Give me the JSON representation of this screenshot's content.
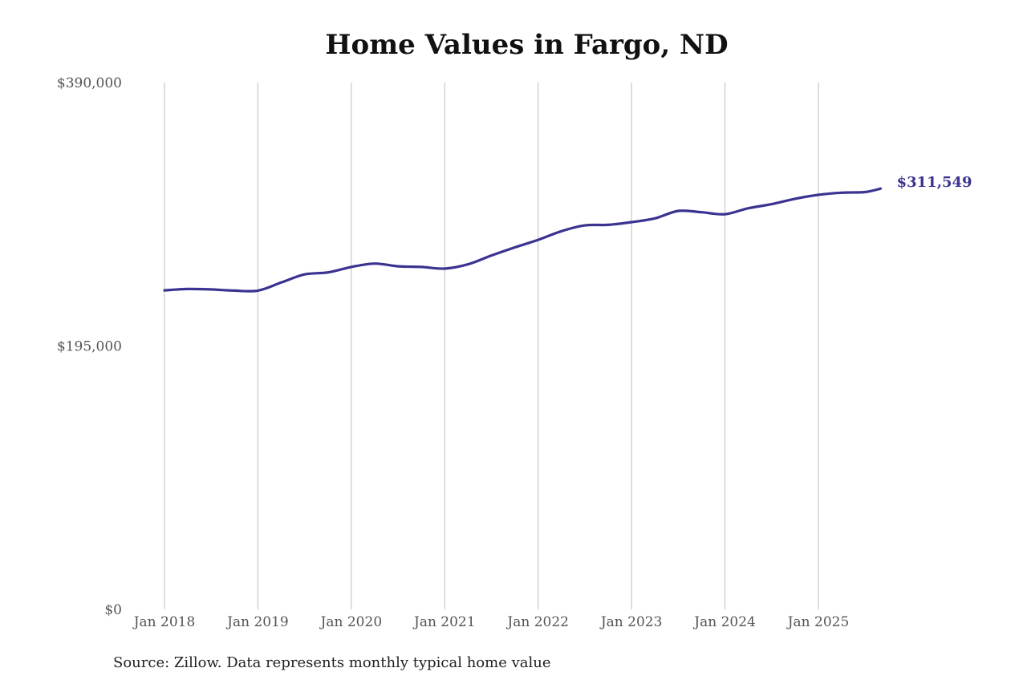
{
  "chart_data": {
    "type": "line",
    "title": "Home Values in Fargo, ND",
    "xlabel": "",
    "ylabel": "",
    "ylim": [
      0,
      390000
    ],
    "yticks": [
      {
        "value": 0,
        "label": "$0"
      },
      {
        "value": 195000,
        "label": "$195,000"
      },
      {
        "value": 390000,
        "label": "$390,000"
      }
    ],
    "xticks": [
      "Jan 2018",
      "Jan 2019",
      "Jan 2020",
      "Jan 2021",
      "Jan 2022",
      "Jan 2023",
      "Jan 2024",
      "Jan 2025"
    ],
    "grid": {
      "vertical": true,
      "horizontal": false
    },
    "legend": null,
    "series": [
      {
        "name": "Typical home value",
        "color": "#3a3391",
        "points": [
          {
            "x": "2018-01",
            "y": 236200
          },
          {
            "x": "2018-04",
            "y": 237200
          },
          {
            "x": "2018-07",
            "y": 236900
          },
          {
            "x": "2018-10",
            "y": 236000
          },
          {
            "x": "2019-01",
            "y": 236000
          },
          {
            "x": "2019-04",
            "y": 242000
          },
          {
            "x": "2019-07",
            "y": 248000
          },
          {
            "x": "2019-10",
            "y": 249500
          },
          {
            "x": "2020-01",
            "y": 253500
          },
          {
            "x": "2020-04",
            "y": 256000
          },
          {
            "x": "2020-07",
            "y": 254000
          },
          {
            "x": "2020-10",
            "y": 253500
          },
          {
            "x": "2021-01",
            "y": 252300
          },
          {
            "x": "2021-04",
            "y": 255500
          },
          {
            "x": "2021-07",
            "y": 262000
          },
          {
            "x": "2021-10",
            "y": 268000
          },
          {
            "x": "2022-01",
            "y": 273600
          },
          {
            "x": "2022-04",
            "y": 280000
          },
          {
            "x": "2022-07",
            "y": 284300
          },
          {
            "x": "2022-10",
            "y": 284700
          },
          {
            "x": "2023-01",
            "y": 286700
          },
          {
            "x": "2023-04",
            "y": 289500
          },
          {
            "x": "2023-07",
            "y": 295000
          },
          {
            "x": "2023-10",
            "y": 294000
          },
          {
            "x": "2024-01",
            "y": 292600
          },
          {
            "x": "2024-04",
            "y": 297000
          },
          {
            "x": "2024-07",
            "y": 300000
          },
          {
            "x": "2024-10",
            "y": 304000
          },
          {
            "x": "2025-01",
            "y": 306900
          },
          {
            "x": "2025-04",
            "y": 308500
          },
          {
            "x": "2025-07",
            "y": 309000
          },
          {
            "x": "2025-09",
            "y": 311549
          }
        ]
      }
    ],
    "annotations": [
      {
        "text": "$311,549",
        "at": "2025-09",
        "color": "#3a3391"
      }
    ]
  },
  "title": "Home Values in Fargo, ND",
  "end_label": "$311,549",
  "source": "Source: Zillow. Data represents monthly typical home value",
  "colors": {
    "line": "#3a3391",
    "grid": "#bbbbbb",
    "text": "#555555"
  }
}
